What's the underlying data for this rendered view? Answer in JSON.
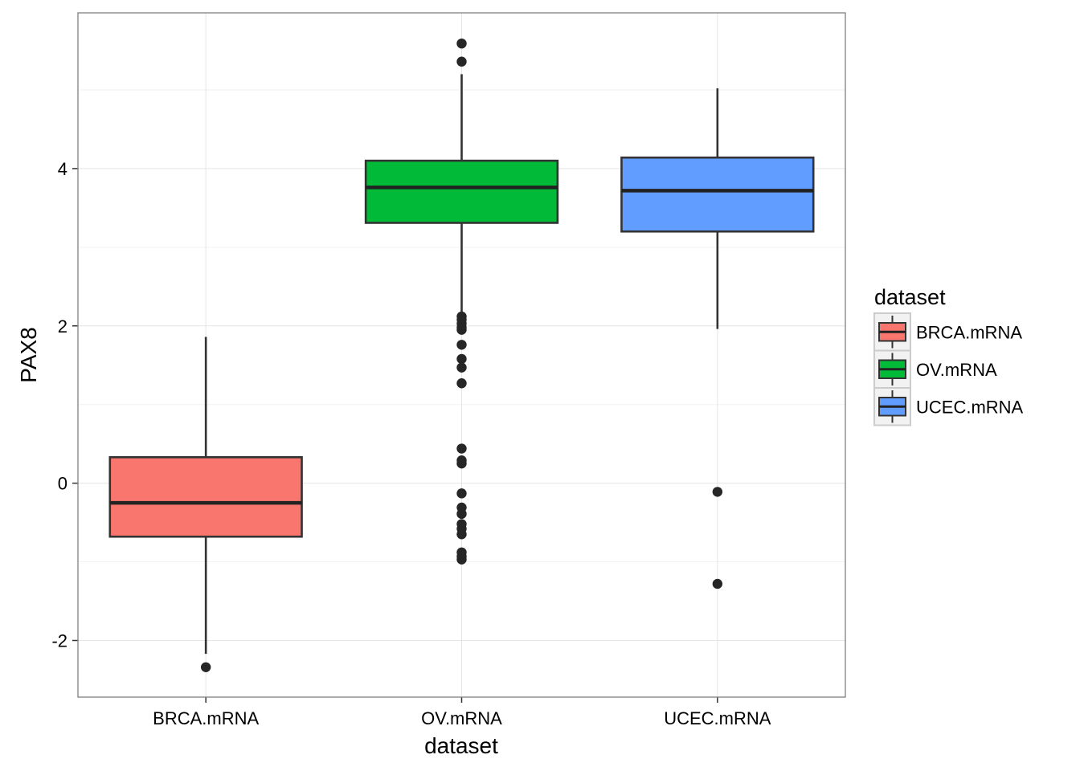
{
  "chart_data": {
    "type": "boxplot",
    "xlabel": "dataset",
    "ylabel": "PAX8",
    "ylim": [
      -2.72,
      5.98
    ],
    "yticks": [
      -2,
      0,
      2,
      4
    ],
    "categories": [
      "BRCA.mRNA",
      "OV.mRNA",
      "UCEC.mRNA"
    ],
    "grid": true,
    "legend": {
      "title": "dataset",
      "position": "right",
      "entries": [
        "BRCA.mRNA",
        "OV.mRNA",
        "UCEC.mRNA"
      ]
    },
    "series": [
      {
        "category": "BRCA.mRNA",
        "color": "#F8766D",
        "whisker_low": -2.17,
        "q1": -0.68,
        "median": -0.25,
        "q3": 0.33,
        "whisker_high": 1.86,
        "outliers": [
          -2.34
        ]
      },
      {
        "category": "OV.mRNA",
        "color": "#00BA38",
        "whisker_low": 2.1,
        "q1": 3.31,
        "median": 3.76,
        "q3": 4.1,
        "whisker_high": 5.2,
        "outliers": [
          5.59,
          5.36,
          2.12,
          2.08,
          2.03,
          1.98,
          1.95,
          1.76,
          1.58,
          1.47,
          1.27,
          0.44,
          0.29,
          0.25,
          -0.13,
          -0.31,
          -0.39,
          -0.52,
          -0.58,
          -0.65,
          -0.88,
          -0.93,
          -0.97
        ]
      },
      {
        "category": "UCEC.mRNA",
        "color": "#619CFF",
        "whisker_low": 1.96,
        "q1": 3.2,
        "median": 3.72,
        "q3": 4.14,
        "whisker_high": 5.02,
        "outliers": [
          -0.11,
          -1.28
        ]
      }
    ]
  }
}
